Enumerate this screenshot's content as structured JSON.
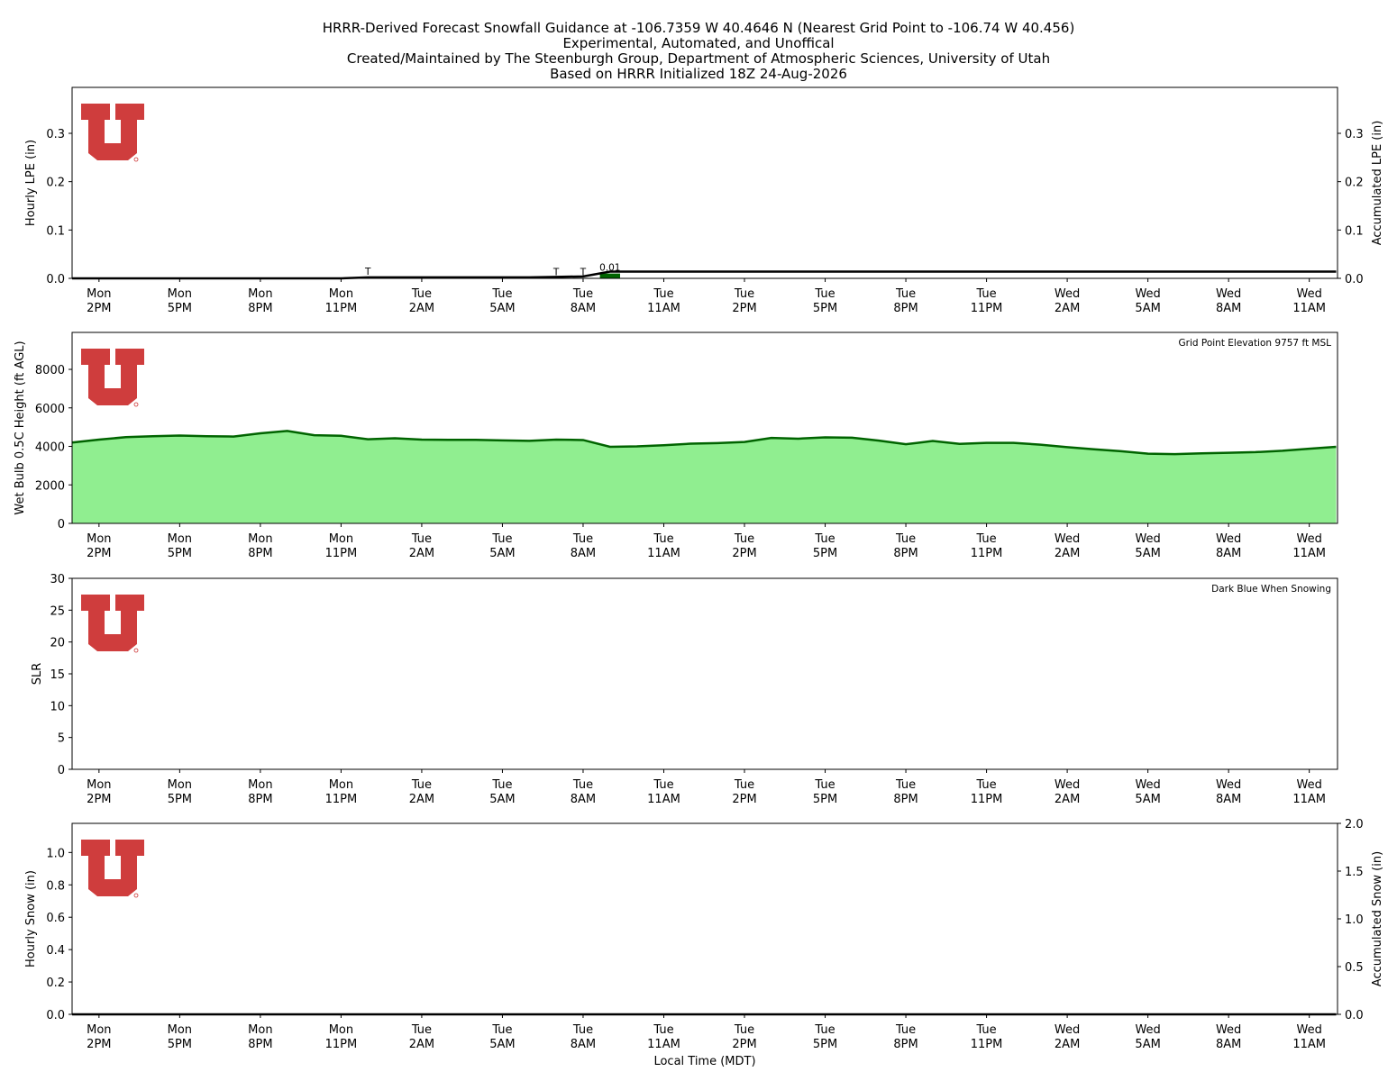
{
  "header": {
    "lines": [
      "HRRR-Derived Forecast Snowfall Guidance at -106.7359 W 40.4646 N (Nearest Grid Point to -106.74 W 40.456)",
      "Experimental, Automated, and Unoffical",
      "Created/Maintained by The Steenburgh Group, Department of Atmospheric Sciences, University of Utah",
      "Based on HRRR Initialized 18Z 24-Aug-2026"
    ]
  },
  "time": {
    "xlabel": "Local Time (MDT)",
    "x": [
      0,
      1,
      2,
      3,
      4,
      5,
      6,
      7,
      8,
      9,
      10,
      11,
      12,
      13,
      14,
      15,
      16,
      17,
      18,
      19,
      20,
      21,
      22,
      23,
      24,
      25,
      26,
      27,
      28,
      29,
      30,
      31,
      32,
      33,
      34,
      35,
      36,
      37,
      38,
      39,
      40,
      41,
      42,
      43,
      44,
      45,
      46,
      47
    ],
    "xlim": [
      0,
      47.05
    ],
    "xticks": [
      {
        "value": 1,
        "label": "Mon\n2PM"
      },
      {
        "value": 4,
        "label": "Mon\n5PM"
      },
      {
        "value": 7,
        "label": "Mon\n8PM"
      },
      {
        "value": 10,
        "label": "Mon\n11PM"
      },
      {
        "value": 13,
        "label": "Tue\n2AM"
      },
      {
        "value": 16,
        "label": "Tue\n5AM"
      },
      {
        "value": 19,
        "label": "Tue\n8AM"
      },
      {
        "value": 22,
        "label": "Tue\n11AM"
      },
      {
        "value": 25,
        "label": "Tue\n2PM"
      },
      {
        "value": 28,
        "label": "Tue\n5PM"
      },
      {
        "value": 31,
        "label": "Tue\n8PM"
      },
      {
        "value": 34,
        "label": "Tue\n11PM"
      },
      {
        "value": 37,
        "label": "Wed\n2AM"
      },
      {
        "value": 40,
        "label": "Wed\n5AM"
      },
      {
        "value": 43,
        "label": "Wed\n8AM"
      },
      {
        "value": 46,
        "label": "Wed\n11AM"
      }
    ]
  },
  "chart_data": [
    {
      "type": "bar",
      "ylabel": "Hourly LPE (in)",
      "y2label": "Accumulated LPE (in)",
      "ylim": [
        0,
        0.395
      ],
      "yticks": [
        {
          "value": 0,
          "label": "0.0"
        },
        0.1,
        0.2,
        0.3
      ],
      "y2lim": [
        0,
        0.395
      ],
      "y2ticks": [
        {
          "value": 0,
          "label": "0.0"
        },
        0.1,
        0.2,
        0.3
      ],
      "series": [
        {
          "type": "bar",
          "color": "#006400",
          "values": [
            0,
            0,
            0,
            0,
            0,
            0,
            0,
            0,
            0,
            0,
            0,
            0.002,
            0,
            0,
            0,
            0,
            0,
            0,
            0.001,
            0.001,
            0.01,
            0,
            0,
            0,
            0,
            0,
            0,
            0,
            0,
            0,
            0,
            0,
            0,
            0,
            0,
            0,
            0,
            0,
            0,
            0,
            0,
            0,
            0,
            0,
            0,
            0,
            0,
            0
          ],
          "value_labels": [
            null,
            null,
            null,
            null,
            null,
            null,
            null,
            null,
            null,
            null,
            null,
            "T",
            null,
            null,
            null,
            null,
            null,
            null,
            "T",
            "T",
            "0.01",
            null,
            null,
            null,
            null,
            null,
            null,
            null,
            null,
            null,
            null,
            null,
            null,
            null,
            null,
            null,
            null,
            null,
            null,
            null,
            null,
            null,
            null,
            null,
            null,
            null,
            null,
            null
          ]
        },
        {
          "type": "line",
          "axis": "y2",
          "color": "#000000",
          "values": [
            0,
            0,
            0,
            0,
            0,
            0,
            0,
            0,
            0,
            0,
            0,
            0.002,
            0.002,
            0.002,
            0.002,
            0.002,
            0.002,
            0.002,
            0.003,
            0.004,
            0.014,
            0.014,
            0.014,
            0.014,
            0.014,
            0.014,
            0.014,
            0.014,
            0.014,
            0.014,
            0.014,
            0.014,
            0.014,
            0.014,
            0.014,
            0.014,
            0.014,
            0.014,
            0.014,
            0.014,
            0.014,
            0.014,
            0.014,
            0.014,
            0.014,
            0.014,
            0.014,
            0.014
          ]
        }
      ]
    },
    {
      "type": "area",
      "ylabel": "Wet Bulb 0.5C Height (ft AGL)",
      "annotation": "Grid Point Elevation 9757 ft MSL",
      "ylim": [
        0,
        9920
      ],
      "yticks": [
        0,
        2000,
        4000,
        6000,
        8000
      ],
      "series": [
        {
          "type": "area",
          "color": "#006400",
          "fill": "#90ee90",
          "values": [
            4200,
            4350,
            4480,
            4530,
            4560,
            4530,
            4510,
            4680,
            4800,
            4580,
            4550,
            4370,
            4420,
            4350,
            4340,
            4340,
            4310,
            4290,
            4350,
            4330,
            3980,
            4000,
            4060,
            4140,
            4170,
            4230,
            4440,
            4400,
            4470,
            4450,
            4300,
            4110,
            4280,
            4130,
            4180,
            4180,
            4090,
            3960,
            3850,
            3750,
            3620,
            3600,
            3640,
            3670,
            3700,
            3770,
            3880,
            3980
          ]
        }
      ]
    },
    {
      "type": "line",
      "ylabel": "SLR",
      "annotation": "Dark Blue When Snowing",
      "ylim": [
        0,
        30
      ],
      "yticks": [
        0,
        5,
        10,
        15,
        20,
        25,
        30
      ],
      "series": []
    },
    {
      "type": "bar",
      "ylabel": "Hourly Snow (in)",
      "y2label": "Accumulated Snow (in)",
      "ylim": [
        0,
        1.18
      ],
      "yticks": [
        {
          "value": 0,
          "label": "0.0"
        },
        0.2,
        0.4,
        0.6,
        0.8,
        {
          "value": 1,
          "label": "1.0"
        }
      ],
      "y2lim": [
        0,
        2
      ],
      "y2ticks": [
        {
          "value": 0,
          "label": "0.0"
        },
        0.5,
        {
          "value": 1,
          "label": "1.0"
        },
        1.5,
        {
          "value": 2,
          "label": "2.0"
        }
      ],
      "series": [
        {
          "type": "bar",
          "color": "#00008b",
          "values": [
            0,
            0,
            0,
            0,
            0,
            0,
            0,
            0,
            0,
            0,
            0,
            0,
            0,
            0,
            0,
            0,
            0,
            0,
            0,
            0,
            0,
            0,
            0,
            0,
            0,
            0,
            0,
            0,
            0,
            0,
            0,
            0,
            0,
            0,
            0,
            0,
            0,
            0,
            0,
            0,
            0,
            0,
            0,
            0,
            0,
            0,
            0,
            0
          ]
        },
        {
          "type": "line",
          "axis": "y2",
          "color": "#000000",
          "values": [
            0,
            0,
            0,
            0,
            0,
            0,
            0,
            0,
            0,
            0,
            0,
            0,
            0,
            0,
            0,
            0,
            0,
            0,
            0,
            0,
            0,
            0,
            0,
            0,
            0,
            0,
            0,
            0,
            0,
            0,
            0,
            0,
            0,
            0,
            0,
            0,
            0,
            0,
            0,
            0,
            0,
            0,
            0,
            0,
            0,
            0,
            0,
            0
          ]
        }
      ]
    }
  ]
}
